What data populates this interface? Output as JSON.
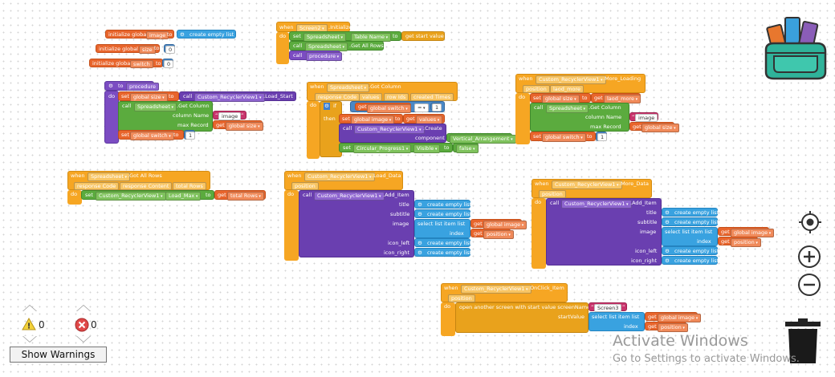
{
  "globals": {
    "image": {
      "prefix": "initialize global",
      "name": "image",
      "to": "to",
      "value": "create empty list"
    },
    "size": {
      "prefix": "initialize global",
      "name": "size",
      "to": "to",
      "value": "0"
    },
    "switch": {
      "prefix": "initialize global",
      "name": "switch",
      "to": "to",
      "value": "0"
    }
  },
  "screen_init": {
    "when": "when",
    "component": "Screen2",
    "event": ".Initialize",
    "do": "do",
    "set": "set",
    "spreadsheet": "Spreadsheet",
    "prop": "Table Name",
    "to": "to",
    "value": "get start value",
    "call": "call",
    "method": ".Get All Rows",
    "call2": "call",
    "procedure": "procedure"
  },
  "procedure_def": {
    "to": "to",
    "name": "procedure",
    "do": "do",
    "set": "set",
    "var": "global size",
    "to_kw": "to",
    "call": "call",
    "rv": "Custom_RecyclerView1",
    "load_start": ".Load_Start",
    "call2": "call",
    "ss": "Spreadsheet",
    "getcol": ".Get Column",
    "colname_label": "column Name",
    "colname_value": "image",
    "maxrec_label": "max Record",
    "maxrec_value": "get",
    "maxrec_var": "global size",
    "set2": "set",
    "var2": "global switch",
    "to2": "to",
    "value2": "1"
  },
  "got_column": {
    "when": "when",
    "ss": "Spreadsheet",
    "event": ".Got Column",
    "p1": "response Code",
    "p2": "values",
    "p3": "row Ids",
    "p4": "created Times",
    "do": "do",
    "if": "if",
    "get": "get",
    "var": "global switch",
    "op": "=",
    "val": "1",
    "then": "then",
    "set": "set",
    "var2": "global image",
    "to": "to",
    "get2": "get",
    "val2": "values",
    "call": "call",
    "rv": "Custom_RecyclerView1",
    "create": ".Create",
    "comp_label": "component",
    "comp_value": "Vertical_Arrangement",
    "set3": "set",
    "cp": "Circular_Progress1",
    "visible": "Visible",
    "to3": "to",
    "false": "false"
  },
  "more_loading": {
    "when": "when",
    "rv": "Custom_RecyclerView1",
    "event": ".More_Loading",
    "param1": "position",
    "param2": "laod_more",
    "do": "do",
    "set": "set",
    "var": "global size",
    "to": "to",
    "get": "get",
    "getv": "laod_more",
    "call": "call",
    "ss": "Spreadsheet",
    "getcol": ".Get Column",
    "colname_label": "column Name",
    "colname_value": "image",
    "maxrec_label": "max Record",
    "maxrec_get": "get",
    "maxrec_var": "global size",
    "set2": "set",
    "var2": "global switch",
    "to2": "to",
    "val2": "1"
  },
  "got_all_rows": {
    "when": "when",
    "ss": "Spreadsheet",
    "event": ".Got All Rows",
    "p1": "response Code",
    "p2": "response Content",
    "p3": "total Rows",
    "do": "do",
    "set": "set",
    "rv": "Custom_RecyclerView1",
    "prop": "Load_Max",
    "to": "to",
    "get": "get",
    "val": "total Rows"
  },
  "load_data": {
    "when": "when",
    "rv": "Custom_RecyclerView1",
    "event": ".Load_Data",
    "param": "position",
    "do": "do",
    "call": "call",
    "method": ".Add_Item",
    "title": "title",
    "subtitle": "subtitle",
    "image": "image",
    "index": "index",
    "icon_left": "icon_left",
    "icon_right": "icon_right",
    "empty": "create empty list",
    "sel": "select list item  list",
    "get": "get",
    "gimage": "global image",
    "gpos": "position"
  },
  "more_data": {
    "when": "when",
    "rv": "Custom_RecyclerView1",
    "event": ".More_Data",
    "param": "position",
    "do": "do",
    "call": "call",
    "method": ".Add_Item",
    "title": "title",
    "subtitle": "subtitle",
    "image": "image",
    "index": "index",
    "icon_left": "icon_left",
    "icon_right": "icon_right",
    "empty": "create empty list",
    "sel": "select list item  list",
    "get": "get",
    "gimage": "global image",
    "gpos": "position"
  },
  "onclick": {
    "when": "when",
    "rv": "Custom_RecyclerView1",
    "event": ".OnClick_Item",
    "param": "position",
    "do": "do",
    "open": "open another screen with start value  screenName",
    "screen": "Screen3",
    "start_label": "startValue",
    "sel": "select list item  list",
    "get": "get",
    "gimage": "global image",
    "index": "index",
    "gpos": "position"
  },
  "warnings": {
    "warn_count": "0",
    "error_count": "0",
    "button": "Show Warnings"
  },
  "watermark": {
    "title": "Activate Windows",
    "subtitle": "Go to Settings to activate Windows."
  },
  "icons": {
    "bag": "backpack-icon",
    "target": "recenter-icon",
    "zoom_in": "zoom-in-icon",
    "zoom_out": "zoom-out-icon",
    "trash": "trash-icon",
    "warn": "warning-icon",
    "error": "error-icon"
  }
}
